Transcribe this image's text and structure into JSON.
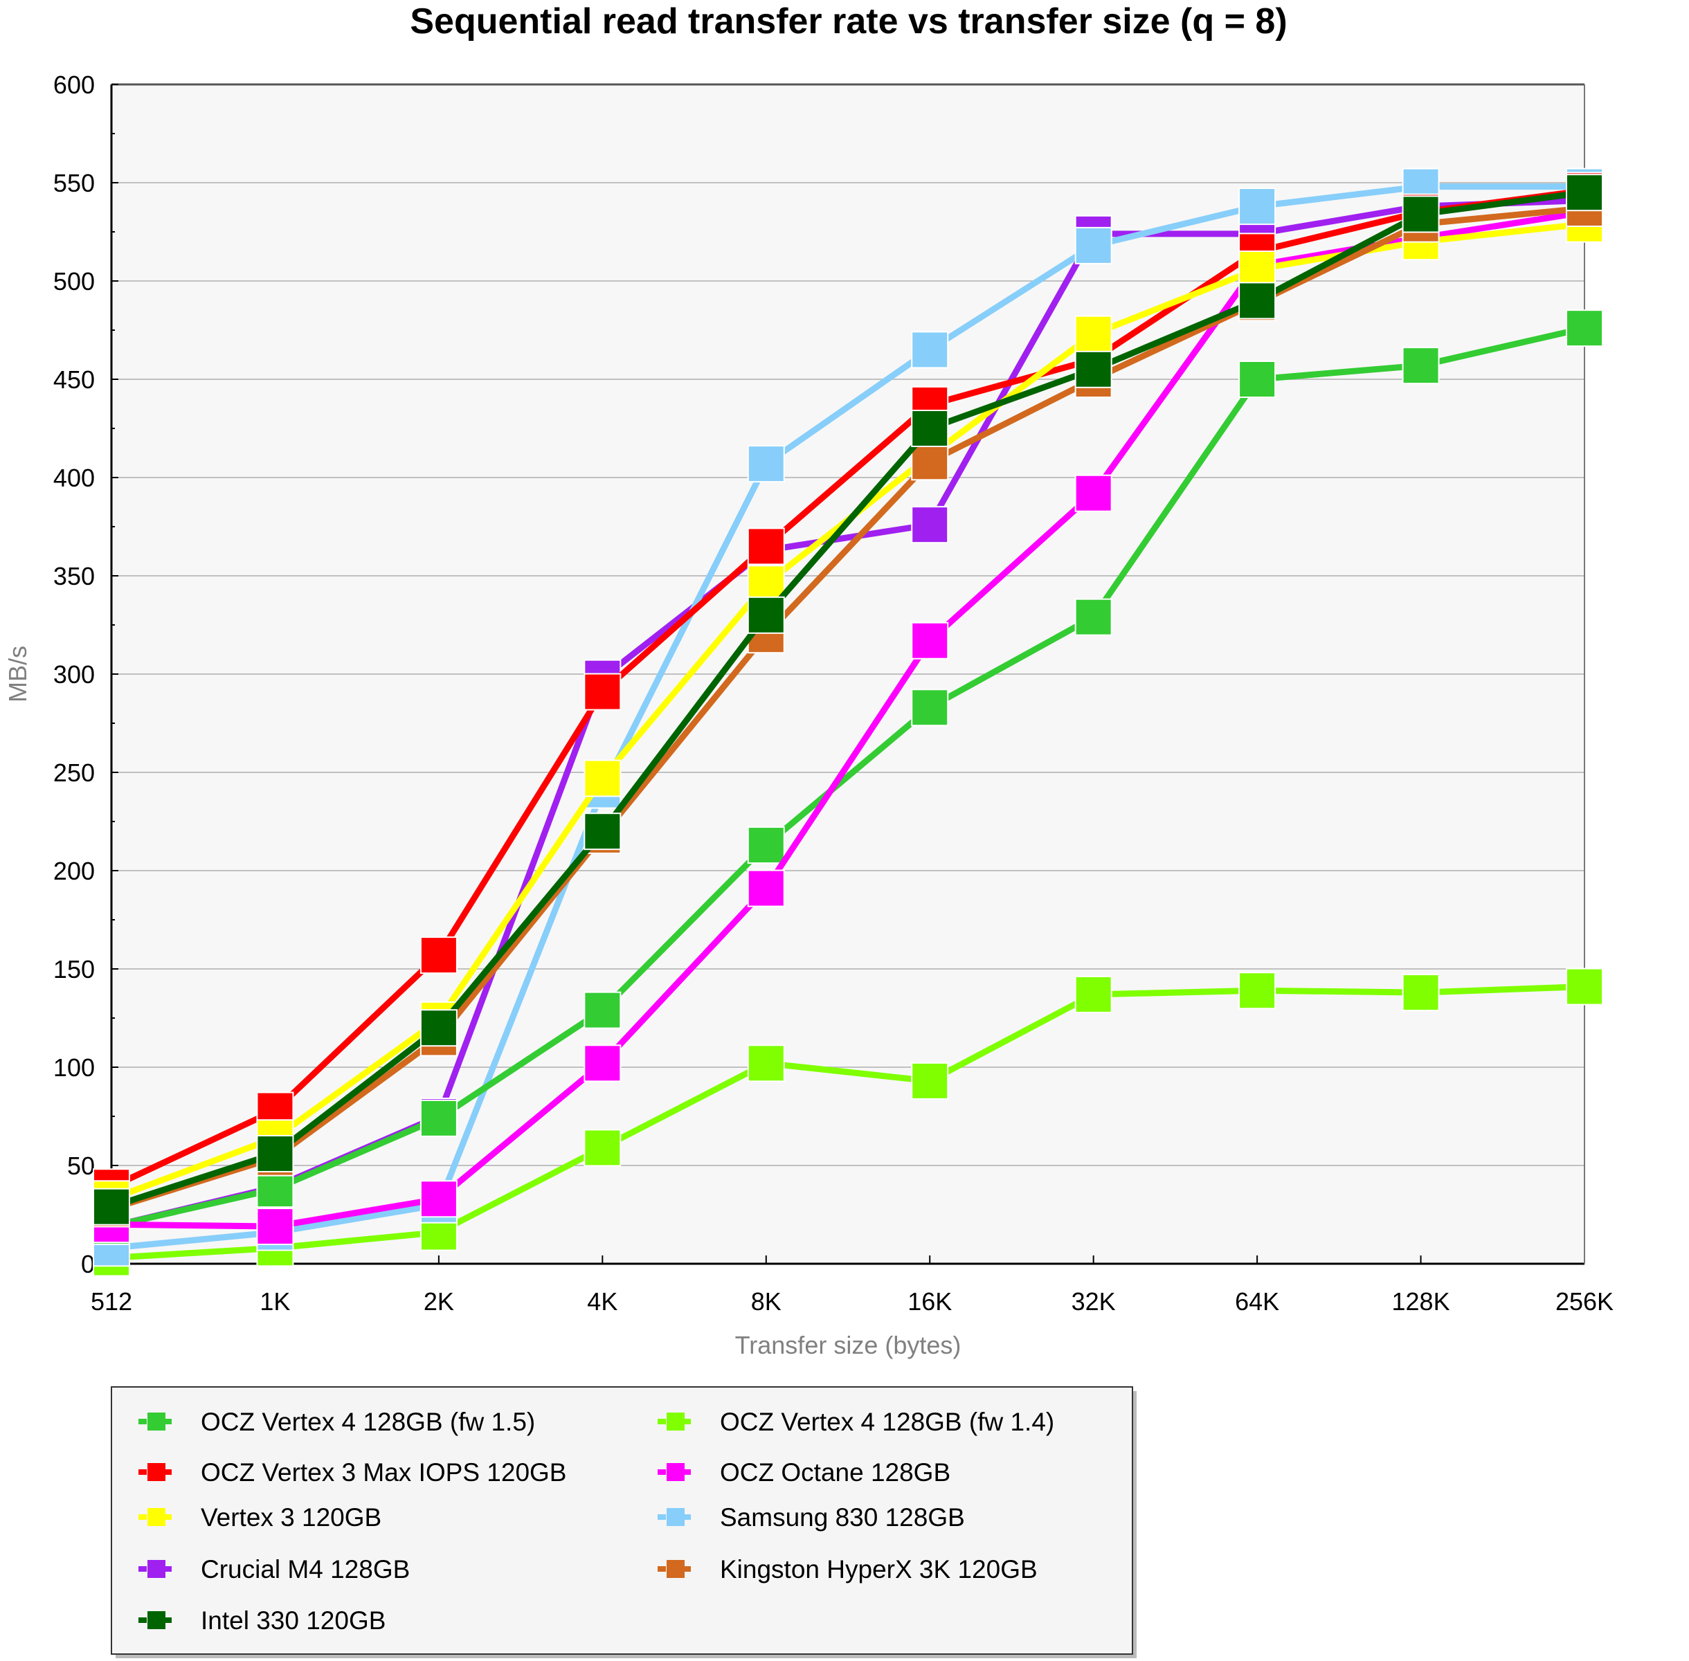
{
  "chart_data": {
    "type": "line",
    "title": "Sequential read transfer rate vs transfer size (q = 8)",
    "xlabel": "Transfer size (bytes)",
    "ylabel": "MB/s",
    "x": [
      "512",
      "1K",
      "2K",
      "4K",
      "8K",
      "16K",
      "32K",
      "64K",
      "128K",
      "256K"
    ],
    "ylim": [
      0,
      600
    ],
    "yticks": [
      0,
      50,
      100,
      150,
      200,
      250,
      300,
      350,
      400,
      450,
      500,
      550,
      600
    ],
    "grid": true,
    "legend_position": "bottom",
    "series": [
      {
        "name": "OCZ Vertex 4 128GB (fw 1.5)",
        "color": "#33cc33",
        "values": [
          19,
          38,
          74,
          129,
          213,
          283,
          329,
          450,
          457,
          476
        ]
      },
      {
        "name": "OCZ Vertex 4 128GB (fw 1.4)",
        "color": "#7fff00",
        "values": [
          3,
          8,
          16,
          59,
          102,
          93,
          137,
          139,
          138,
          141
        ]
      },
      {
        "name": "OCZ Vertex 3 Max IOPS 120GB",
        "color": "#ff0000",
        "values": [
          39,
          78,
          157,
          291,
          365,
          437,
          460,
          515,
          535,
          546
        ]
      },
      {
        "name": "OCZ Octane 128GB",
        "color": "#ff00ff",
        "values": [
          20,
          19,
          33,
          102,
          191,
          317,
          392,
          508,
          522,
          535
        ]
      },
      {
        "name": "Vertex 3 120GB",
        "color": "#ffff00",
        "values": [
          33,
          64,
          124,
          247,
          346,
          411,
          473,
          506,
          520,
          529
        ]
      },
      {
        "name": "Samsung 830 128GB",
        "color": "#87cefa",
        "values": [
          8,
          16,
          30,
          241,
          407,
          465,
          518,
          538,
          548,
          548
        ]
      },
      {
        "name": "Crucial M4 128GB",
        "color": "#a020f0",
        "values": [
          19,
          39,
          75,
          298,
          363,
          376,
          524,
          524,
          538,
          541
        ]
      },
      {
        "name": "Kingston HyperX 3K 120GB",
        "color": "#d2691e",
        "values": [
          28,
          54,
          115,
          218,
          320,
          408,
          450,
          489,
          529,
          537
        ]
      },
      {
        "name": "Intel 330 120GB",
        "color": "#006400",
        "values": [
          29,
          56,
          120,
          220,
          330,
          425,
          455,
          490,
          534,
          545
        ]
      }
    ]
  },
  "draw_order": [
    6,
    1,
    5,
    0,
    3,
    2,
    4,
    7,
    8
  ],
  "legend_order": [
    0,
    1,
    2,
    3,
    4,
    5,
    6,
    7,
    8
  ]
}
